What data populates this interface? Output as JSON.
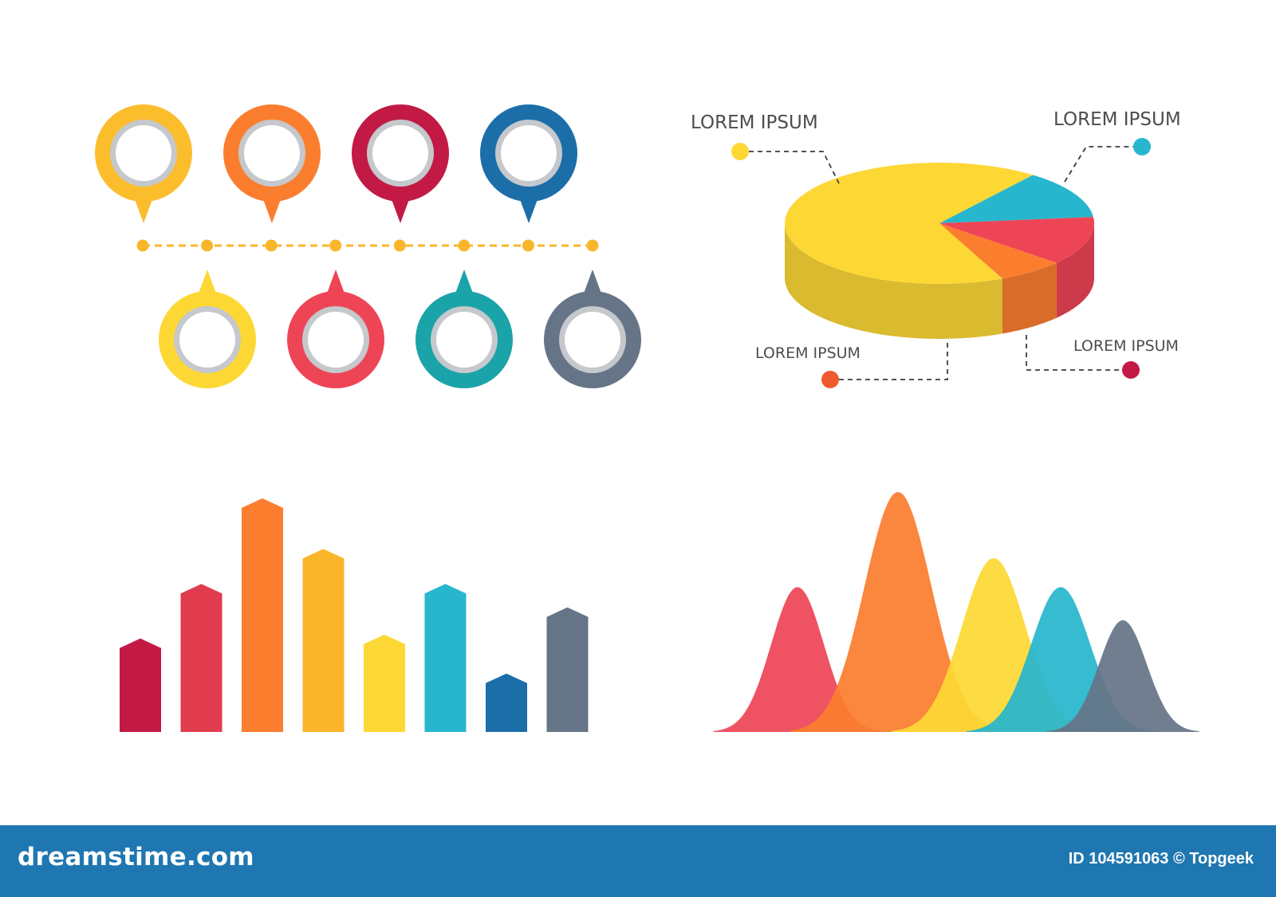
{
  "colors": {
    "yellow": "#fdd835",
    "amber": "#f9b62b",
    "orange": "#fb7d2e",
    "red": "#ee4556",
    "crimson": "#c21a45",
    "teal": "#1aa3a8",
    "cyan": "#27b6cd",
    "blue": "#1c6ea8",
    "slate": "#667487",
    "ring": "#c5c8cc",
    "footer": "#1e77b0"
  },
  "timeline": {
    "top_pins": [
      {
        "color": "#fbbd2c"
      },
      {
        "color": "#fb7d2e"
      },
      {
        "color": "#c21a45"
      },
      {
        "color": "#1c6ea8"
      }
    ],
    "bottom_pins": [
      {
        "color": "#fdd835"
      },
      {
        "color": "#ee4556"
      },
      {
        "color": "#1aa3a8"
      },
      {
        "color": "#667487"
      }
    ],
    "dot_count": 8,
    "line_color": "#f9b62b"
  },
  "pie_labels": {
    "top_left": "LOREM IPSUM",
    "top_right": "LOREM IPSUM",
    "bottom_left": "LOREM IPSUM",
    "bottom_right": "LOREM IPSUM"
  },
  "chart_data": [
    {
      "type": "pie",
      "slices": [
        {
          "value": 67,
          "color": "#fdd835",
          "dot_color": "#fdd835"
        },
        {
          "value": 13,
          "color": "#27b6cd",
          "dot_color": "#27b6cd"
        },
        {
          "value": 13,
          "color": "#ee4556",
          "dot_color": "#c21a45"
        },
        {
          "value": 7,
          "color": "#fb7d2e",
          "dot_color": "#ef5a2c"
        }
      ]
    },
    {
      "type": "bar",
      "values": [
        24,
        38,
        60,
        47,
        25,
        38,
        15,
        32
      ],
      "colors": [
        "#c21a45",
        "#e03c4d",
        "#fb7d2e",
        "#f9b62b",
        "#fdd835",
        "#27b6cd",
        "#1c6ea8",
        "#667487"
      ],
      "ylim": [
        0,
        60
      ]
    },
    {
      "type": "area",
      "peaks": [
        {
          "height": 35,
          "color": "#ee4556"
        },
        {
          "height": 58,
          "color": "#fb7d2e"
        },
        {
          "height": 42,
          "color": "#fdd835"
        },
        {
          "height": 35,
          "color": "#27b6cd"
        },
        {
          "height": 27,
          "color": "#667487"
        }
      ],
      "ylim": [
        0,
        58
      ]
    }
  ],
  "footer": {
    "brand": "dreamstime.com",
    "credit": "ID 104591063 © Topgeek"
  }
}
